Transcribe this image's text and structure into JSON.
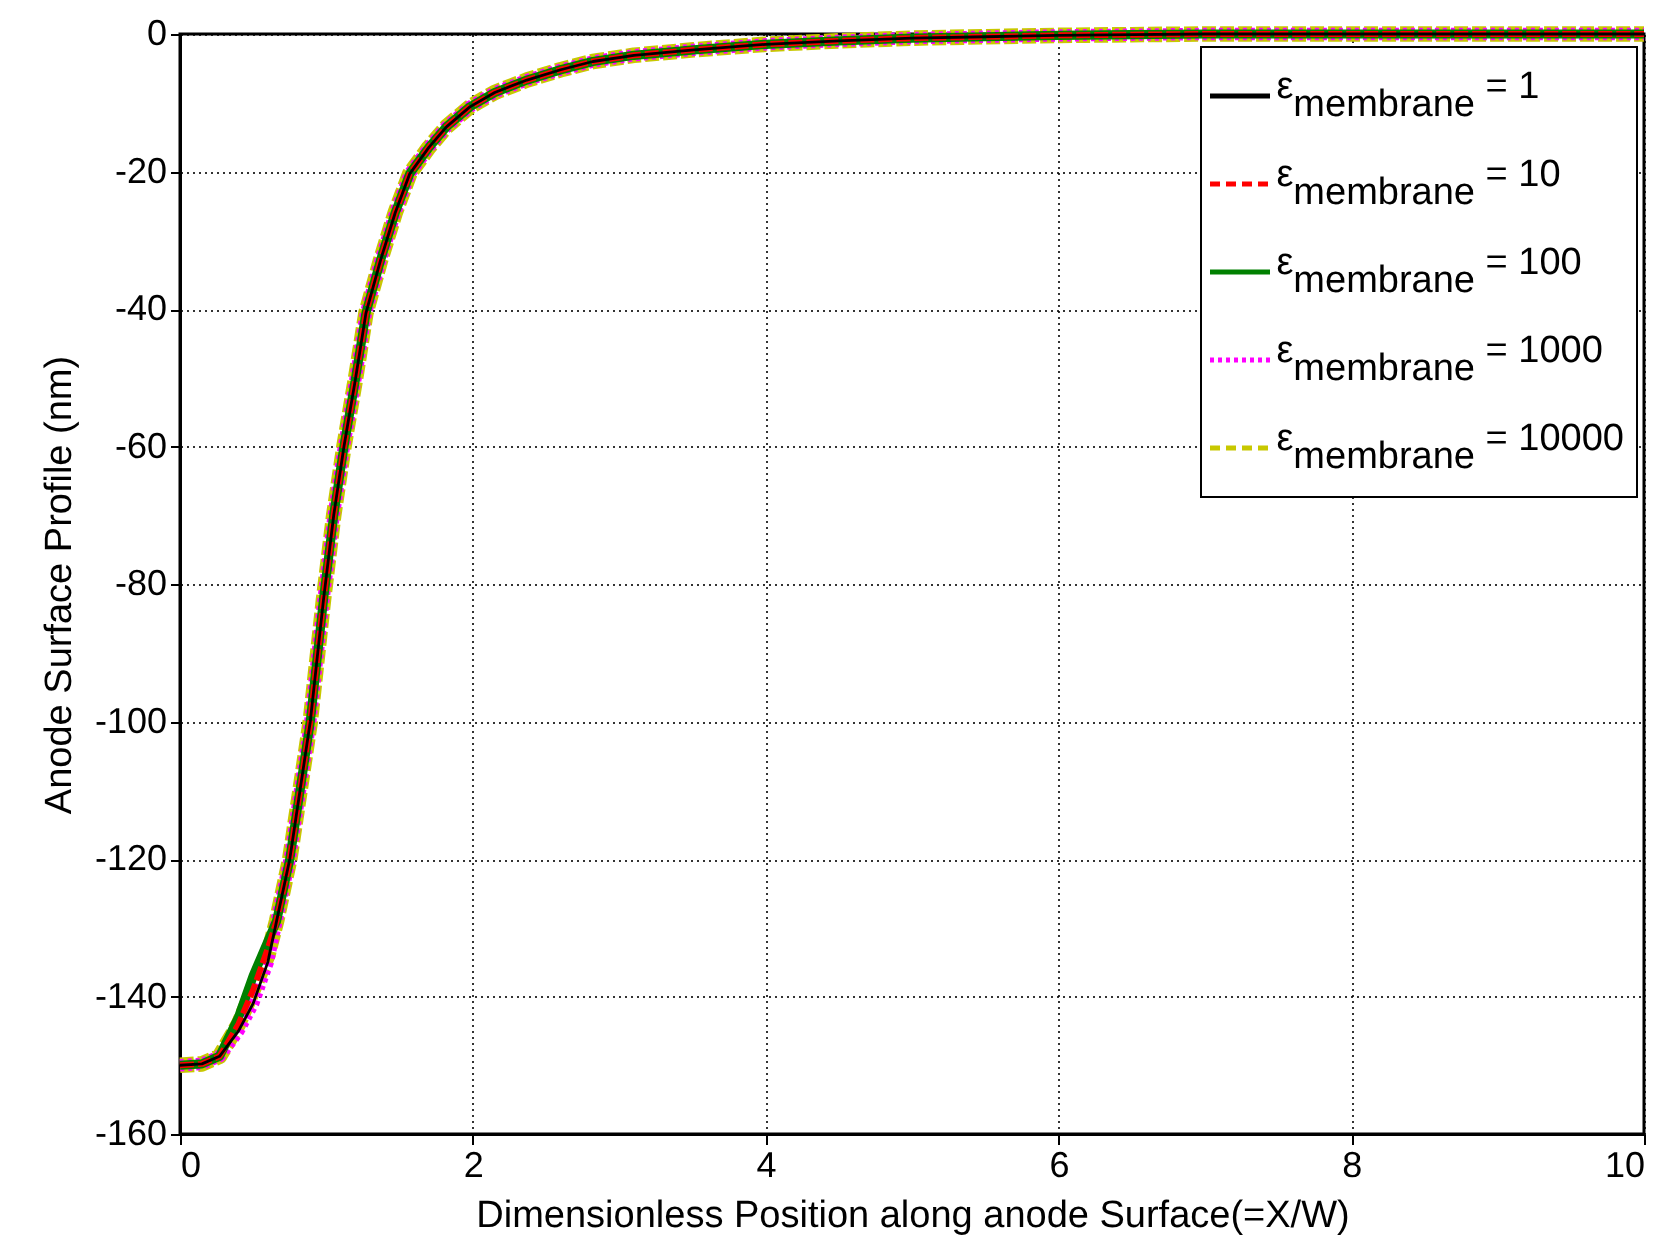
{
  "chart_data": {
    "type": "line",
    "xlabel": "Dimensionless Position along anode Surface(=X/W)",
    "ylabel": "Anode Surface Profile (nm)",
    "x": [
      0,
      0.15,
      0.27,
      0.4,
      0.5,
      0.6,
      0.66,
      0.75,
      0.82,
      0.89,
      0.98,
      1.05,
      1.12,
      1.2,
      1.27,
      1.37,
      1.47,
      1.57,
      1.7,
      1.82,
      1.98,
      2.15,
      2.37,
      2.6,
      2.82,
      3.1,
      3.51,
      4,
      4.5,
      5,
      5.5,
      6,
      6.5,
      7,
      8,
      9,
      10
    ],
    "series": [
      {
        "name": "ε$_{membrane}$ = 1",
        "color": "#000000",
        "line_style": "solid",
        "values": [
          -150,
          -149.8,
          -148.7,
          -145,
          -141,
          -135,
          -129,
          -120,
          -110,
          -100,
          -82.3,
          -70,
          -60,
          -50,
          -40.6,
          -32.9,
          -26,
          -20.3,
          -16.5,
          -13.5,
          -10.6,
          -8.5,
          -6.7,
          -5.2,
          -4,
          -3.1,
          -2.3,
          -1.5,
          -1,
          -0.6,
          -0.4,
          -0.2,
          -0.1,
          0,
          0,
          0,
          0
        ]
      },
      {
        "name": "ε$_{membrane}$ = 10",
        "color": "#ff0000",
        "line_style": "dashed",
        "values": [
          -150,
          -149.8,
          -148.7,
          -144,
          -139,
          -133,
          -129,
          -120,
          -110,
          -100,
          -82.3,
          -70,
          -60,
          -50,
          -40.6,
          -32.9,
          -26,
          -20.3,
          -16.5,
          -13.5,
          -10.6,
          -8.5,
          -6.7,
          -5.2,
          -4,
          -3.1,
          -2.3,
          -1.5,
          -1,
          -0.6,
          -0.4,
          -0.2,
          -0.1,
          0,
          0,
          0,
          0
        ]
      },
      {
        "name": "ε$_{membrane}$ = 100",
        "color": "#008000",
        "line_style": "solid",
        "values": [
          -150,
          -149.8,
          -148.7,
          -143,
          -137,
          -132,
          -129,
          -120,
          -110,
          -100,
          -82.3,
          -70,
          -60,
          -50,
          -40.6,
          -32.9,
          -26,
          -20.3,
          -16.5,
          -13.5,
          -10.6,
          -8.5,
          -6.7,
          -5.2,
          -4,
          -3.1,
          -2.3,
          -1.5,
          -1,
          -0.6,
          -0.4,
          -0.2,
          -0.1,
          0,
          0,
          0,
          0
        ]
      },
      {
        "name": "ε$_{membrane}$ = 1000",
        "color": "#ff00ff",
        "line_style": "dotted",
        "values": [
          -150,
          -149.8,
          -148.7,
          -145,
          -141,
          -135,
          -129,
          -120,
          -110,
          -100,
          -82.3,
          -70,
          -60,
          -50,
          -40.6,
          -32.9,
          -26,
          -20.3,
          -16.5,
          -13.5,
          -10.6,
          -8.5,
          -6.7,
          -5.2,
          -4,
          -3.1,
          -2.3,
          -1.5,
          -1,
          -0.6,
          -0.4,
          -0.2,
          -0.1,
          0,
          0,
          0,
          0
        ]
      },
      {
        "name": "ε$_{membrane}$ = 10000",
        "color": "#c8c800",
        "line_style": "dashed",
        "values": [
          -150,
          -149.8,
          -148.7,
          -144,
          -139,
          -134,
          -129,
          -120,
          -110,
          -100,
          -82.3,
          -70,
          -60,
          -50,
          -40.6,
          -32.9,
          -26,
          -20.3,
          -16.5,
          -13.5,
          -10.6,
          -8.5,
          -6.7,
          -5.2,
          -4,
          -3.1,
          -2.3,
          -1.5,
          -1,
          -0.6,
          -0.4,
          -0.2,
          -0.1,
          0,
          0,
          0,
          0
        ]
      }
    ],
    "xlim": [
      0,
      10
    ],
    "xticks": [
      0,
      2,
      4,
      6,
      8,
      10
    ],
    "ylim": [
      -160,
      0
    ],
    "yticks": [
      -160,
      -140,
      -120,
      -100,
      -80,
      -60,
      -40,
      -20,
      0
    ],
    "grid": true,
    "legend": "top right",
    "marker": "none"
  }
}
